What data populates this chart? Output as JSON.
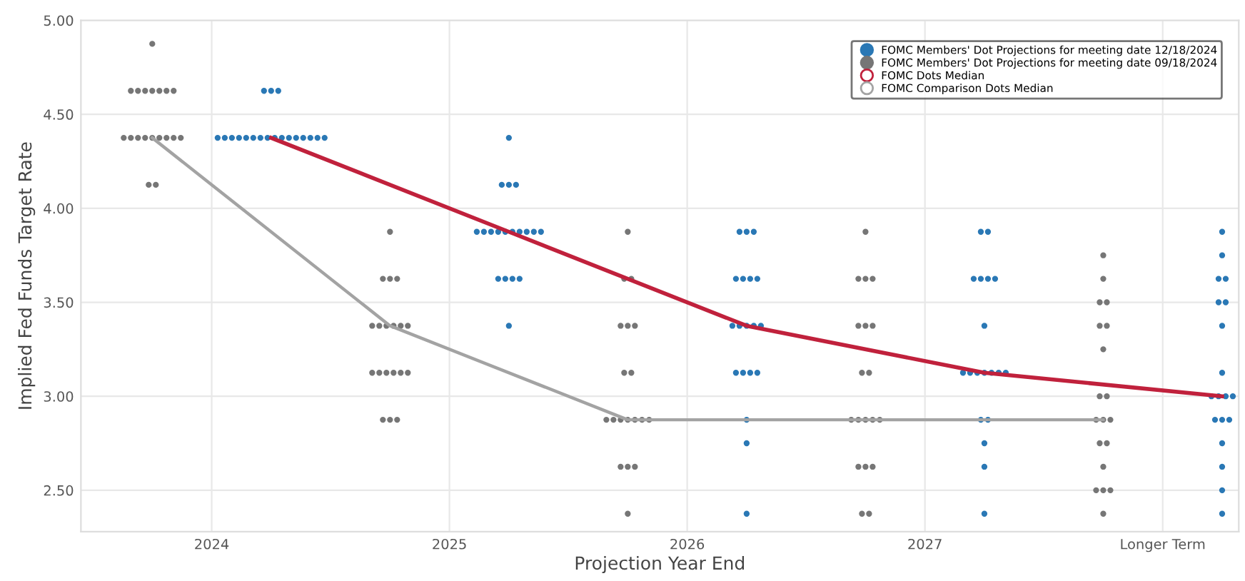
{
  "chart_data": {
    "type": "scatter",
    "xlabel": "Projection Year End",
    "ylabel": "Implied Fed Funds Target Rate",
    "xlim": [
      2023.45,
      2028.32
    ],
    "xticks": [
      2024,
      2025,
      2026,
      2027,
      {
        "value": 2028,
        "label": "Longer Term"
      }
    ],
    "ylim": [
      2.28,
      5.0
    ],
    "yticks": [
      {
        "value": 2.5,
        "label": "2.50"
      },
      {
        "value": 3.0,
        "label": "3.00"
      },
      {
        "value": 3.5,
        "label": "3.50"
      },
      {
        "value": 4.0,
        "label": "4.00"
      },
      {
        "value": 4.5,
        "label": "4.50"
      },
      {
        "value": 5.0,
        "label": "5.00"
      }
    ],
    "grid": true,
    "legend": "top right",
    "marker": "circle",
    "series": [
      {
        "name": "FOMC Members' Dot Projections for meeting date 12/18/2024",
        "color": "#2a78b5",
        "x": [
          2024.22,
          2024.25,
          2024.28,
          2024.025,
          2024.055,
          2024.085,
          2024.115,
          2024.145,
          2024.175,
          2024.205,
          2024.235,
          2024.265,
          2024.295,
          2024.325,
          2024.355,
          2024.385,
          2024.415,
          2024.445,
          2024.475,
          2025.25,
          2025.22,
          2025.25,
          2025.28,
          2025.115,
          2025.145,
          2025.175,
          2025.205,
          2025.235,
          2025.265,
          2025.295,
          2025.325,
          2025.355,
          2025.385,
          2025.205,
          2025.235,
          2025.265,
          2025.295,
          2025.25,
          2026.22,
          2026.25,
          2026.28,
          2026.205,
          2026.235,
          2026.265,
          2026.295,
          2026.19,
          2026.22,
          2026.25,
          2026.28,
          2026.31,
          2026.205,
          2026.235,
          2026.265,
          2026.295,
          2026.25,
          2026.25,
          2026.25,
          2027.235,
          2027.265,
          2027.205,
          2027.235,
          2027.265,
          2027.295,
          2027.25,
          2027.16,
          2027.19,
          2027.22,
          2027.25,
          2027.28,
          2027.31,
          2027.34,
          2027.235,
          2027.265,
          2027.25,
          2027.25,
          2027.25,
          2028.25,
          2028.25,
          2028.235,
          2028.265,
          2028.235,
          2028.265,
          2028.25,
          2028.25,
          2028.205,
          2028.235,
          2028.265,
          2028.295,
          2028.22,
          2028.25,
          2028.28,
          2028.25,
          2028.25,
          2028.25,
          2028.25
        ],
        "values": [
          4.625,
          4.625,
          4.625,
          4.375,
          4.375,
          4.375,
          4.375,
          4.375,
          4.375,
          4.375,
          4.375,
          4.375,
          4.375,
          4.375,
          4.375,
          4.375,
          4.375,
          4.375,
          4.375,
          4.375,
          4.125,
          4.125,
          4.125,
          3.875,
          3.875,
          3.875,
          3.875,
          3.875,
          3.875,
          3.875,
          3.875,
          3.875,
          3.875,
          3.625,
          3.625,
          3.625,
          3.625,
          3.375,
          3.875,
          3.875,
          3.875,
          3.625,
          3.625,
          3.625,
          3.625,
          3.375,
          3.375,
          3.375,
          3.375,
          3.375,
          3.125,
          3.125,
          3.125,
          3.125,
          2.875,
          2.75,
          2.375,
          3.875,
          3.875,
          3.625,
          3.625,
          3.625,
          3.625,
          3.375,
          3.125,
          3.125,
          3.125,
          3.125,
          3.125,
          3.125,
          3.125,
          2.875,
          2.875,
          2.75,
          2.625,
          2.375,
          3.875,
          3.75,
          3.625,
          3.625,
          3.5,
          3.5,
          3.375,
          3.125,
          3.0,
          3.0,
          3.0,
          3.0,
          2.875,
          2.875,
          2.875,
          2.75,
          2.625,
          2.5,
          2.375
        ]
      },
      {
        "name": "FOMC Members' Dot Projections for meeting date 09/18/2024",
        "color": "#767676",
        "x": [
          2023.75,
          2023.66,
          2023.69,
          2023.72,
          2023.75,
          2023.78,
          2023.81,
          2023.84,
          2023.63,
          2023.66,
          2023.69,
          2023.72,
          2023.75,
          2023.78,
          2023.81,
          2023.84,
          2023.87,
          2023.735,
          2023.765,
          2024.75,
          2024.72,
          2024.75,
          2024.78,
          2024.675,
          2024.705,
          2024.735,
          2024.765,
          2024.795,
          2024.825,
          2024.675,
          2024.705,
          2024.735,
          2024.765,
          2024.795,
          2024.825,
          2024.72,
          2024.75,
          2024.78,
          2025.75,
          2025.735,
          2025.765,
          2025.72,
          2025.75,
          2025.78,
          2025.735,
          2025.765,
          2025.66,
          2025.69,
          2025.72,
          2025.75,
          2025.78,
          2025.81,
          2025.84,
          2025.72,
          2025.75,
          2025.78,
          2025.75,
          2026.75,
          2026.72,
          2026.75,
          2026.78,
          2026.72,
          2026.75,
          2026.78,
          2026.735,
          2026.765,
          2026.69,
          2026.72,
          2026.75,
          2026.78,
          2026.81,
          2026.72,
          2026.75,
          2026.78,
          2026.735,
          2026.765,
          2027.75,
          2027.75,
          2027.735,
          2027.765,
          2027.735,
          2027.765,
          2027.75,
          2027.735,
          2027.765,
          2027.72,
          2027.75,
          2027.78,
          2027.735,
          2027.765,
          2027.75,
          2027.72,
          2027.75,
          2027.78,
          2027.75
        ],
        "values": [
          4.875,
          4.625,
          4.625,
          4.625,
          4.625,
          4.625,
          4.625,
          4.625,
          4.375,
          4.375,
          4.375,
          4.375,
          4.375,
          4.375,
          4.375,
          4.375,
          4.375,
          4.125,
          4.125,
          3.875,
          3.625,
          3.625,
          3.625,
          3.375,
          3.375,
          3.375,
          3.375,
          3.375,
          3.375,
          3.125,
          3.125,
          3.125,
          3.125,
          3.125,
          3.125,
          2.875,
          2.875,
          2.875,
          3.875,
          3.625,
          3.625,
          3.375,
          3.375,
          3.375,
          3.125,
          3.125,
          2.875,
          2.875,
          2.875,
          2.875,
          2.875,
          2.875,
          2.875,
          2.625,
          2.625,
          2.625,
          2.375,
          3.875,
          3.625,
          3.625,
          3.625,
          3.375,
          3.375,
          3.375,
          3.125,
          3.125,
          2.875,
          2.875,
          2.875,
          2.875,
          2.875,
          2.625,
          2.625,
          2.625,
          2.375,
          2.375,
          3.75,
          3.625,
          3.5,
          3.5,
          3.375,
          3.375,
          3.25,
          3.0,
          3.0,
          2.875,
          2.875,
          2.875,
          2.75,
          2.75,
          2.625,
          2.5,
          2.5,
          2.5,
          2.375
        ]
      },
      {
        "name": "FOMC Dots Median",
        "type": "line",
        "marker": "none",
        "color": "#c0213c",
        "x": [
          2024.25,
          2025.25,
          2026.25,
          2027.25,
          2028.25
        ],
        "values": [
          4.375,
          3.875,
          3.375,
          3.125,
          3.0
        ]
      },
      {
        "name": "FOMC Comparison Dots Median",
        "type": "line",
        "marker": "none",
        "color": "#a3a3a3",
        "x": [
          2023.75,
          2024.75,
          2025.75,
          2026.75,
          2027.75
        ],
        "values": [
          4.375,
          3.375,
          2.875,
          2.875,
          2.875
        ]
      }
    ]
  }
}
